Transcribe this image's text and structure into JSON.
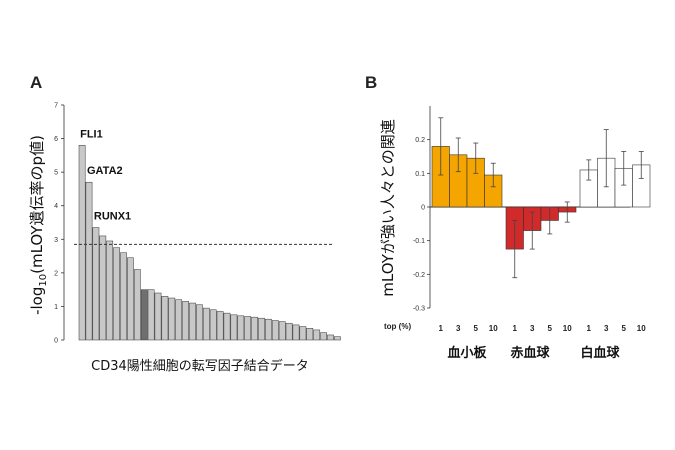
{
  "chart_data": [
    {
      "panel": "A",
      "type": "bar",
      "ylabel": "-log10(mLOY遺伝率のp値)",
      "ylabel_main": "-log",
      "ylabel_sub": "10",
      "ylabel_rest": "(mLOY遺伝率のp値)",
      "xlabel": "CD34陽性細胞の転写因子結合データ",
      "ylim": [
        0,
        7
      ],
      "yticks": [
        "0",
        "1",
        "2",
        "3",
        "4",
        "5",
        "6",
        "7"
      ],
      "threshold": 2.85,
      "values": [
        5.8,
        4.7,
        3.35,
        3.1,
        2.95,
        2.75,
        2.6,
        2.45,
        2.1,
        1.5,
        1.5,
        1.4,
        1.3,
        1.25,
        1.2,
        1.15,
        1.1,
        1.05,
        0.95,
        0.9,
        0.85,
        0.8,
        0.75,
        0.72,
        0.7,
        0.68,
        0.65,
        0.62,
        0.58,
        0.55,
        0.5,
        0.45,
        0.4,
        0.35,
        0.3,
        0.22,
        0.15,
        0.1
      ],
      "highlight_index": 9,
      "annotations": [
        {
          "label": "FLI1",
          "bar": 0
        },
        {
          "label": "GATA2",
          "bar": 1
        },
        {
          "label": "RUNX1",
          "bar": 2
        }
      ],
      "colors": {
        "bar": "#c8c8c8",
        "highlight": "#6f6f6f",
        "edge": "#333333"
      }
    },
    {
      "panel": "B",
      "type": "bar",
      "ylabel": "mLOYが強い人々との関連",
      "ylim": [
        -0.3,
        0.3
      ],
      "yticks": [
        "-0.3",
        "-0.2",
        "-0.1",
        "0",
        "0.1",
        "0.2"
      ],
      "top_label": "top (%)",
      "categories": [
        "1",
        "3",
        "5",
        "10"
      ],
      "series": [
        {
          "name": "血小板",
          "values": [
            0.18,
            0.155,
            0.145,
            0.095
          ],
          "errors": [
            0.085,
            0.05,
            0.045,
            0.035
          ],
          "color": "#f5a500"
        },
        {
          "name": "赤血球",
          "values": [
            -0.125,
            -0.07,
            -0.04,
            -0.015
          ],
          "errors": [
            0.085,
            0.055,
            0.04,
            0.03
          ],
          "color": "#d02a2a"
        },
        {
          "name": "白血球",
          "values": [
            0.11,
            0.145,
            0.115,
            0.125
          ],
          "errors": [
            0.03,
            0.085,
            0.05,
            0.04
          ],
          "color": "#ffffff"
        }
      ]
    }
  ],
  "labels": {
    "panel_a": "A",
    "panel_b": "B"
  }
}
